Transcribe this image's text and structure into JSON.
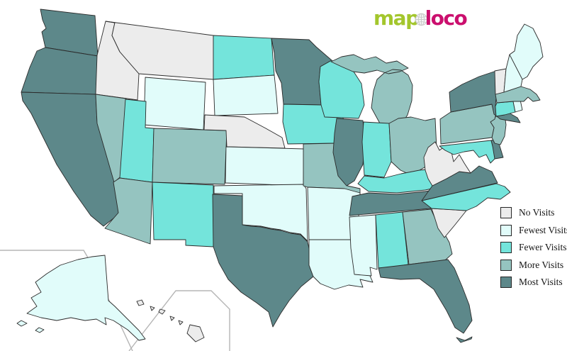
{
  "logo": {
    "part1": "map",
    "part2": "loco",
    "part1_color": "#a3c62c",
    "part2_color": "#cb0f6e"
  },
  "legend": {
    "items": [
      {
        "level": "no",
        "label": "No Visits",
        "color": "#ececec"
      },
      {
        "level": "fewest",
        "label": "Fewest Visits",
        "color": "#e1fcfa"
      },
      {
        "level": "fewer",
        "label": "Fewer Visits",
        "color": "#74e4db"
      },
      {
        "level": "more",
        "label": "More Visits",
        "color": "#95c4c0"
      },
      {
        "level": "most",
        "label": "Most Visits",
        "color": "#5d888a"
      }
    ]
  },
  "map": {
    "border_color": "#2b2b2b",
    "inset_border_color": "#b5b5b5",
    "background": "#ffffff"
  },
  "chart_data": {
    "type": "choropleth",
    "region": "United States",
    "legend_labels": [
      "No Visits",
      "Fewest Visits",
      "Fewer Visits",
      "More Visits",
      "Most Visits"
    ],
    "states": [
      {
        "code": "WA",
        "name": "Washington",
        "level": "most"
      },
      {
        "code": "OR",
        "name": "Oregon",
        "level": "most"
      },
      {
        "code": "CA",
        "name": "California",
        "level": "most"
      },
      {
        "code": "ID",
        "name": "Idaho",
        "level": "no"
      },
      {
        "code": "MT",
        "name": "Montana",
        "level": "no"
      },
      {
        "code": "WY",
        "name": "Wyoming",
        "level": "fewest"
      },
      {
        "code": "NV",
        "name": "Nevada",
        "level": "more"
      },
      {
        "code": "UT",
        "name": "Utah",
        "level": "fewer"
      },
      {
        "code": "CO",
        "name": "Colorado",
        "level": "more"
      },
      {
        "code": "AZ",
        "name": "Arizona",
        "level": "more"
      },
      {
        "code": "NM",
        "name": "New Mexico",
        "level": "fewer"
      },
      {
        "code": "ND",
        "name": "North Dakota",
        "level": "fewer"
      },
      {
        "code": "SD",
        "name": "South Dakota",
        "level": "fewest"
      },
      {
        "code": "NE",
        "name": "Nebraska",
        "level": "no"
      },
      {
        "code": "KS",
        "name": "Kansas",
        "level": "fewest"
      },
      {
        "code": "OK",
        "name": "Oklahoma",
        "level": "fewest"
      },
      {
        "code": "TX",
        "name": "Texas",
        "level": "most"
      },
      {
        "code": "MN",
        "name": "Minnesota",
        "level": "most"
      },
      {
        "code": "IA",
        "name": "Iowa",
        "level": "fewer"
      },
      {
        "code": "MO",
        "name": "Missouri",
        "level": "more"
      },
      {
        "code": "AR",
        "name": "Arkansas",
        "level": "fewest"
      },
      {
        "code": "LA",
        "name": "Louisiana",
        "level": "fewest"
      },
      {
        "code": "WI",
        "name": "Wisconsin",
        "level": "fewer"
      },
      {
        "code": "IL",
        "name": "Illinois",
        "level": "most"
      },
      {
        "code": "MI",
        "name": "Michigan",
        "level": "more"
      },
      {
        "code": "IN",
        "name": "Indiana",
        "level": "fewer"
      },
      {
        "code": "OH",
        "name": "Ohio",
        "level": "more"
      },
      {
        "code": "KY",
        "name": "Kentucky",
        "level": "fewer"
      },
      {
        "code": "TN",
        "name": "Tennessee",
        "level": "most"
      },
      {
        "code": "MS",
        "name": "Mississippi",
        "level": "fewest"
      },
      {
        "code": "AL",
        "name": "Alabama",
        "level": "fewer"
      },
      {
        "code": "GA",
        "name": "Georgia",
        "level": "more"
      },
      {
        "code": "FL",
        "name": "Florida",
        "level": "most"
      },
      {
        "code": "SC",
        "name": "South Carolina",
        "level": "no"
      },
      {
        "code": "NC",
        "name": "North Carolina",
        "level": "fewer"
      },
      {
        "code": "VA",
        "name": "Virginia",
        "level": "most"
      },
      {
        "code": "WV",
        "name": "West Virginia",
        "level": "no"
      },
      {
        "code": "MD",
        "name": "Maryland",
        "level": "fewer"
      },
      {
        "code": "DE",
        "name": "Delaware",
        "level": "most"
      },
      {
        "code": "NJ",
        "name": "New Jersey",
        "level": "more"
      },
      {
        "code": "PA",
        "name": "Pennsylvania",
        "level": "more"
      },
      {
        "code": "NY",
        "name": "New York",
        "level": "most"
      },
      {
        "code": "CT",
        "name": "Connecticut",
        "level": "fewer"
      },
      {
        "code": "RI",
        "name": "Rhode Island",
        "level": "fewest"
      },
      {
        "code": "MA",
        "name": "Massachusetts",
        "level": "more"
      },
      {
        "code": "VT",
        "name": "Vermont",
        "level": "no"
      },
      {
        "code": "NH",
        "name": "New Hampshire",
        "level": "fewest"
      },
      {
        "code": "ME",
        "name": "Maine",
        "level": "fewest"
      },
      {
        "code": "AK",
        "name": "Alaska",
        "level": "fewest"
      },
      {
        "code": "HI",
        "name": "Hawaii",
        "level": "no"
      }
    ]
  }
}
